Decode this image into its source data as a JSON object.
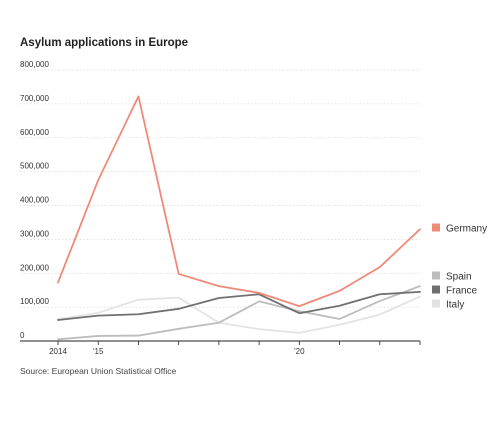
{
  "title": "Asylum applications in Europe",
  "source": "Source: European Union Statistical Office",
  "chart_data": {
    "type": "line",
    "title": "Asylum applications in Europe",
    "x": [
      2014,
      2015,
      2016,
      2017,
      2018,
      2019,
      2020,
      2021,
      2022,
      2023
    ],
    "x_tick_values": [
      2014,
      2015,
      2020
    ],
    "x_tick_labels": [
      "2014",
      "'15",
      "'20"
    ],
    "xlim": [
      2014,
      2023
    ],
    "ylim": [
      0,
      800000
    ],
    "y_tick_values": [
      0,
      100000,
      200000,
      300000,
      400000,
      500000,
      600000,
      700000,
      800000
    ],
    "y_tick_labels": [
      "0",
      "100,000",
      "200,000",
      "300,000",
      "400,000",
      "500,000",
      "600,000",
      "700,000",
      "800,000"
    ],
    "grid": true,
    "legend_position": "right",
    "series": [
      {
        "name": "Germany",
        "color": "#f08a78",
        "values": [
          173000,
          475000,
          722000,
          198000,
          162000,
          142000,
          103000,
          148000,
          218000,
          330000
        ]
      },
      {
        "name": "Spain",
        "color": "#bdbdbd",
        "values": [
          5000,
          15000,
          16000,
          36000,
          54000,
          117000,
          88000,
          65000,
          118000,
          162000
        ]
      },
      {
        "name": "France",
        "color": "#707070",
        "values": [
          62000,
          75000,
          79000,
          95000,
          127000,
          138000,
          82000,
          104000,
          138000,
          145000
        ]
      },
      {
        "name": "Italy",
        "color": "#e3e3e3",
        "values": [
          64000,
          83000,
          122000,
          128000,
          54000,
          35000,
          24000,
          48000,
          78000,
          131000
        ]
      }
    ]
  }
}
